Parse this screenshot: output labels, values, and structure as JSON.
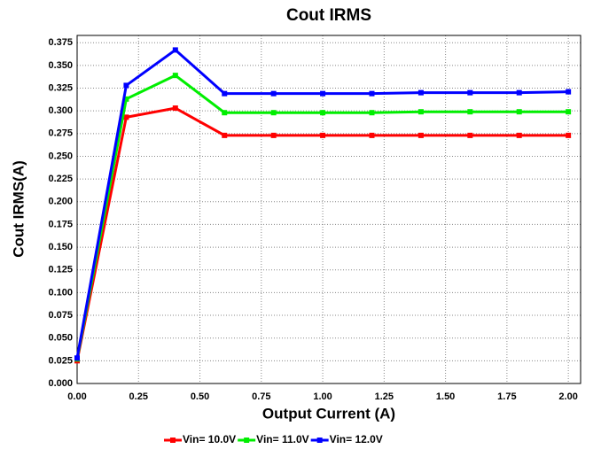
{
  "chart_data": {
    "type": "line",
    "title": "Cout IRMS",
    "xlabel": "Output Current (A)",
    "ylabel": "Cout IRMS(A)",
    "x": [
      0,
      0.2,
      0.4,
      0.6,
      0.8,
      1.0,
      1.2,
      1.4,
      1.6,
      1.8,
      2.0
    ],
    "series": [
      {
        "name": "Vin= 10.0V",
        "color": "#ff0000",
        "values": [
          0.025,
          0.293,
          0.303,
          0.273,
          0.273,
          0.273,
          0.273,
          0.273,
          0.273,
          0.273,
          0.273
        ]
      },
      {
        "name": "Vin= 11.0V",
        "color": "#00ee00",
        "values": [
          0.027,
          0.313,
          0.339,
          0.298,
          0.298,
          0.298,
          0.298,
          0.299,
          0.299,
          0.299,
          0.299
        ]
      },
      {
        "name": "Vin= 12.0V",
        "color": "#0000ff",
        "values": [
          0.028,
          0.328,
          0.367,
          0.319,
          0.319,
          0.319,
          0.319,
          0.32,
          0.32,
          0.32,
          0.321
        ]
      }
    ],
    "xlim": [
      0,
      2.05
    ],
    "ylim": [
      0,
      0.383
    ],
    "xticks": [
      {
        "value": 0,
        "label": "0.00"
      },
      {
        "value": 0.25,
        "label": "0.25"
      },
      {
        "value": 0.5,
        "label": "0.50"
      },
      {
        "value": 0.75,
        "label": "0.75"
      },
      {
        "value": 1,
        "label": "1.00"
      },
      {
        "value": 1.25,
        "label": "1.25"
      },
      {
        "value": 1.5,
        "label": "1.50"
      },
      {
        "value": 1.75,
        "label": "1.75"
      },
      {
        "value": 2,
        "label": "2.00"
      }
    ],
    "yticks": [
      {
        "value": 0,
        "label": "0.000"
      },
      {
        "value": 0.025,
        "label": "0.025"
      },
      {
        "value": 0.05,
        "label": "0.050"
      },
      {
        "value": 0.075,
        "label": "0.075"
      },
      {
        "value": 0.1,
        "label": "0.100"
      },
      {
        "value": 0.125,
        "label": "0.125"
      },
      {
        "value": 0.15,
        "label": "0.150"
      },
      {
        "value": 0.175,
        "label": "0.175"
      },
      {
        "value": 0.2,
        "label": "0.200"
      },
      {
        "value": 0.225,
        "label": "0.225"
      },
      {
        "value": 0.25,
        "label": "0.250"
      },
      {
        "value": 0.275,
        "label": "0.275"
      },
      {
        "value": 0.3,
        "label": "0.300"
      },
      {
        "value": 0.325,
        "label": "0.325"
      },
      {
        "value": 0.35,
        "label": "0.350"
      },
      {
        "value": 0.375,
        "label": "0.375"
      }
    ],
    "grid": true,
    "legend": "bottom"
  }
}
